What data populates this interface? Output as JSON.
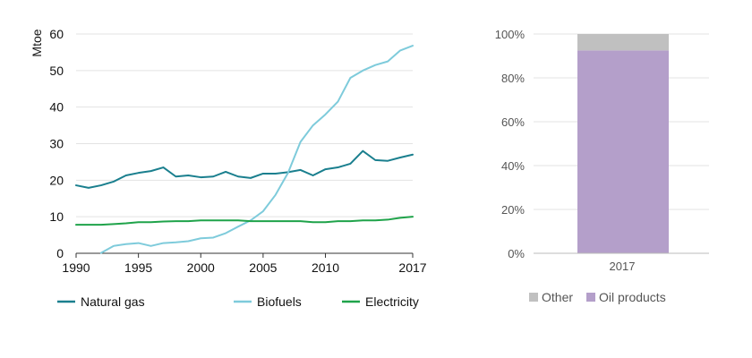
{
  "chart_data": [
    {
      "type": "line",
      "ylabel": "Mtoe",
      "xlabel": "",
      "ylim": [
        0,
        60
      ],
      "xlim": [
        1990,
        2017
      ],
      "yticks": [
        "0",
        "10",
        "20",
        "30",
        "40",
        "50",
        "60"
      ],
      "xticks": [
        "1990",
        "1995",
        "2000",
        "2005",
        "2010",
        "2017"
      ],
      "x": [
        1990,
        1991,
        1992,
        1993,
        1994,
        1995,
        1996,
        1997,
        1998,
        1999,
        2000,
        2001,
        2002,
        2003,
        2004,
        2005,
        2006,
        2007,
        2008,
        2009,
        2010,
        2011,
        2012,
        2013,
        2014,
        2015,
        2016,
        2017
      ],
      "series": [
        {
          "name": "Natural gas",
          "color": "#1a7f8e",
          "values": [
            18.6,
            17.9,
            18.6,
            19.6,
            21.3,
            22.0,
            22.5,
            23.5,
            21.0,
            21.3,
            20.8,
            21.0,
            22.3,
            21.0,
            20.6,
            21.8,
            21.8,
            22.2,
            22.8,
            21.3,
            23.0,
            23.5,
            24.5,
            28.0,
            25.5,
            25.3,
            26.2,
            27.0
          ]
        },
        {
          "name": "Biofuels",
          "color": "#7ecbdb",
          "values": [
            null,
            null,
            0.1,
            2.0,
            2.5,
            2.8,
            2.0,
            2.8,
            3.0,
            3.3,
            4.1,
            4.3,
            5.5,
            7.3,
            9.0,
            11.5,
            16.0,
            22.0,
            30.5,
            35.0,
            38.0,
            41.5,
            48.0,
            50.0,
            51.5,
            52.5,
            55.5,
            56.8
          ]
        },
        {
          "name": "Electricity",
          "color": "#1fa34a",
          "values": [
            7.8,
            7.8,
            7.8,
            8.0,
            8.2,
            8.5,
            8.5,
            8.7,
            8.8,
            8.8,
            9.0,
            9.0,
            9.0,
            9.0,
            8.8,
            8.8,
            8.8,
            8.8,
            8.8,
            8.5,
            8.5,
            8.8,
            8.8,
            9.0,
            9.0,
            9.2,
            9.7,
            10.0
          ]
        }
      ],
      "legend": [
        "Natural gas",
        "Biofuels",
        "Electricity"
      ]
    },
    {
      "type": "bar",
      "stacked": true,
      "categories": [
        "2017"
      ],
      "ylim": [
        0,
        100
      ],
      "yticks": [
        "0%",
        "20%",
        "40%",
        "60%",
        "80%",
        "100%"
      ],
      "series": [
        {
          "name": "Oil products",
          "color": "#b49fca",
          "values": [
            92.5
          ]
        },
        {
          "name": "Other",
          "color": "#c0c0c0",
          "values": [
            7.5
          ]
        }
      ],
      "legend": [
        "Other",
        "Oil products"
      ]
    }
  ]
}
